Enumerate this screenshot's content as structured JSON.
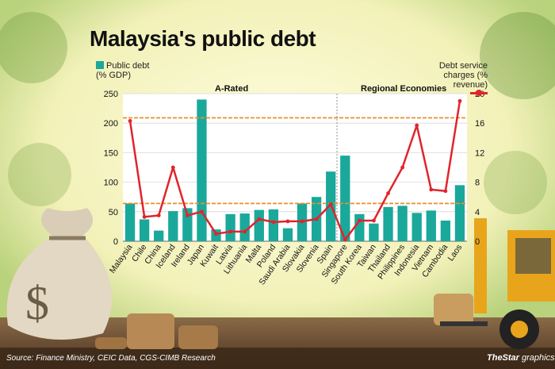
{
  "title": "Malaysia's public debt",
  "legend": {
    "bar_label": "Public debt\n(% GDP)",
    "line_label": "Debt service\ncharges (% revenue)"
  },
  "sections": [
    "A-Rated",
    "Regional Economies"
  ],
  "source": "Source:  Finance Ministry, CEIC Data, CGS-CIMB Research",
  "brand": {
    "main": "TheStar",
    "suffix": "graphics"
  },
  "colors": {
    "bar": "#1aa89b",
    "line": "#e0242b",
    "reference": "#e8902a",
    "plot_bg": "#ffffff"
  },
  "chart_data": {
    "type": "bar",
    "categories": [
      "Malaysia",
      "Chile",
      "China",
      "Iceland",
      "Ireland",
      "Japan",
      "Kuwait",
      "Latvia",
      "Lithuania",
      "Malta",
      "Poland",
      "Saudi Arabia",
      "Slovakia",
      "Slovenia",
      "Spain",
      "Singapore",
      "South Korea",
      "Taiwan",
      "Thailand",
      "Philippines",
      "Indonesia",
      "Vietnam",
      "Cambodia",
      "Laos"
    ],
    "series": [
      {
        "axis": "left",
        "kind": "bar",
        "values": [
          64,
          37,
          18,
          51,
          56,
          240,
          20,
          46,
          47,
          53,
          54,
          22,
          64,
          75,
          118,
          145,
          46,
          30,
          58,
          60,
          48,
          52,
          35,
          95
        ]
      },
      {
        "axis": "right",
        "kind": "line",
        "values": [
          16.3,
          3.3,
          3.5,
          10,
          3.5,
          4,
          1,
          1.3,
          1.3,
          3,
          2.6,
          2.7,
          2.7,
          3,
          5,
          0.2,
          2.8,
          2.8,
          6.5,
          10,
          15.7,
          7,
          6.8,
          19
        ]
      }
    ],
    "yleft": {
      "ticks": [
        0,
        50,
        100,
        150,
        200,
        250
      ],
      "range": [
        0,
        250
      ]
    },
    "yright": {
      "ticks": [
        0,
        4,
        8,
        12,
        16,
        20
      ],
      "range": [
        0,
        20
      ]
    },
    "reference_lines_left": [
      64,
      209
    ],
    "section_split_after": "Spain",
    "grid": true
  }
}
